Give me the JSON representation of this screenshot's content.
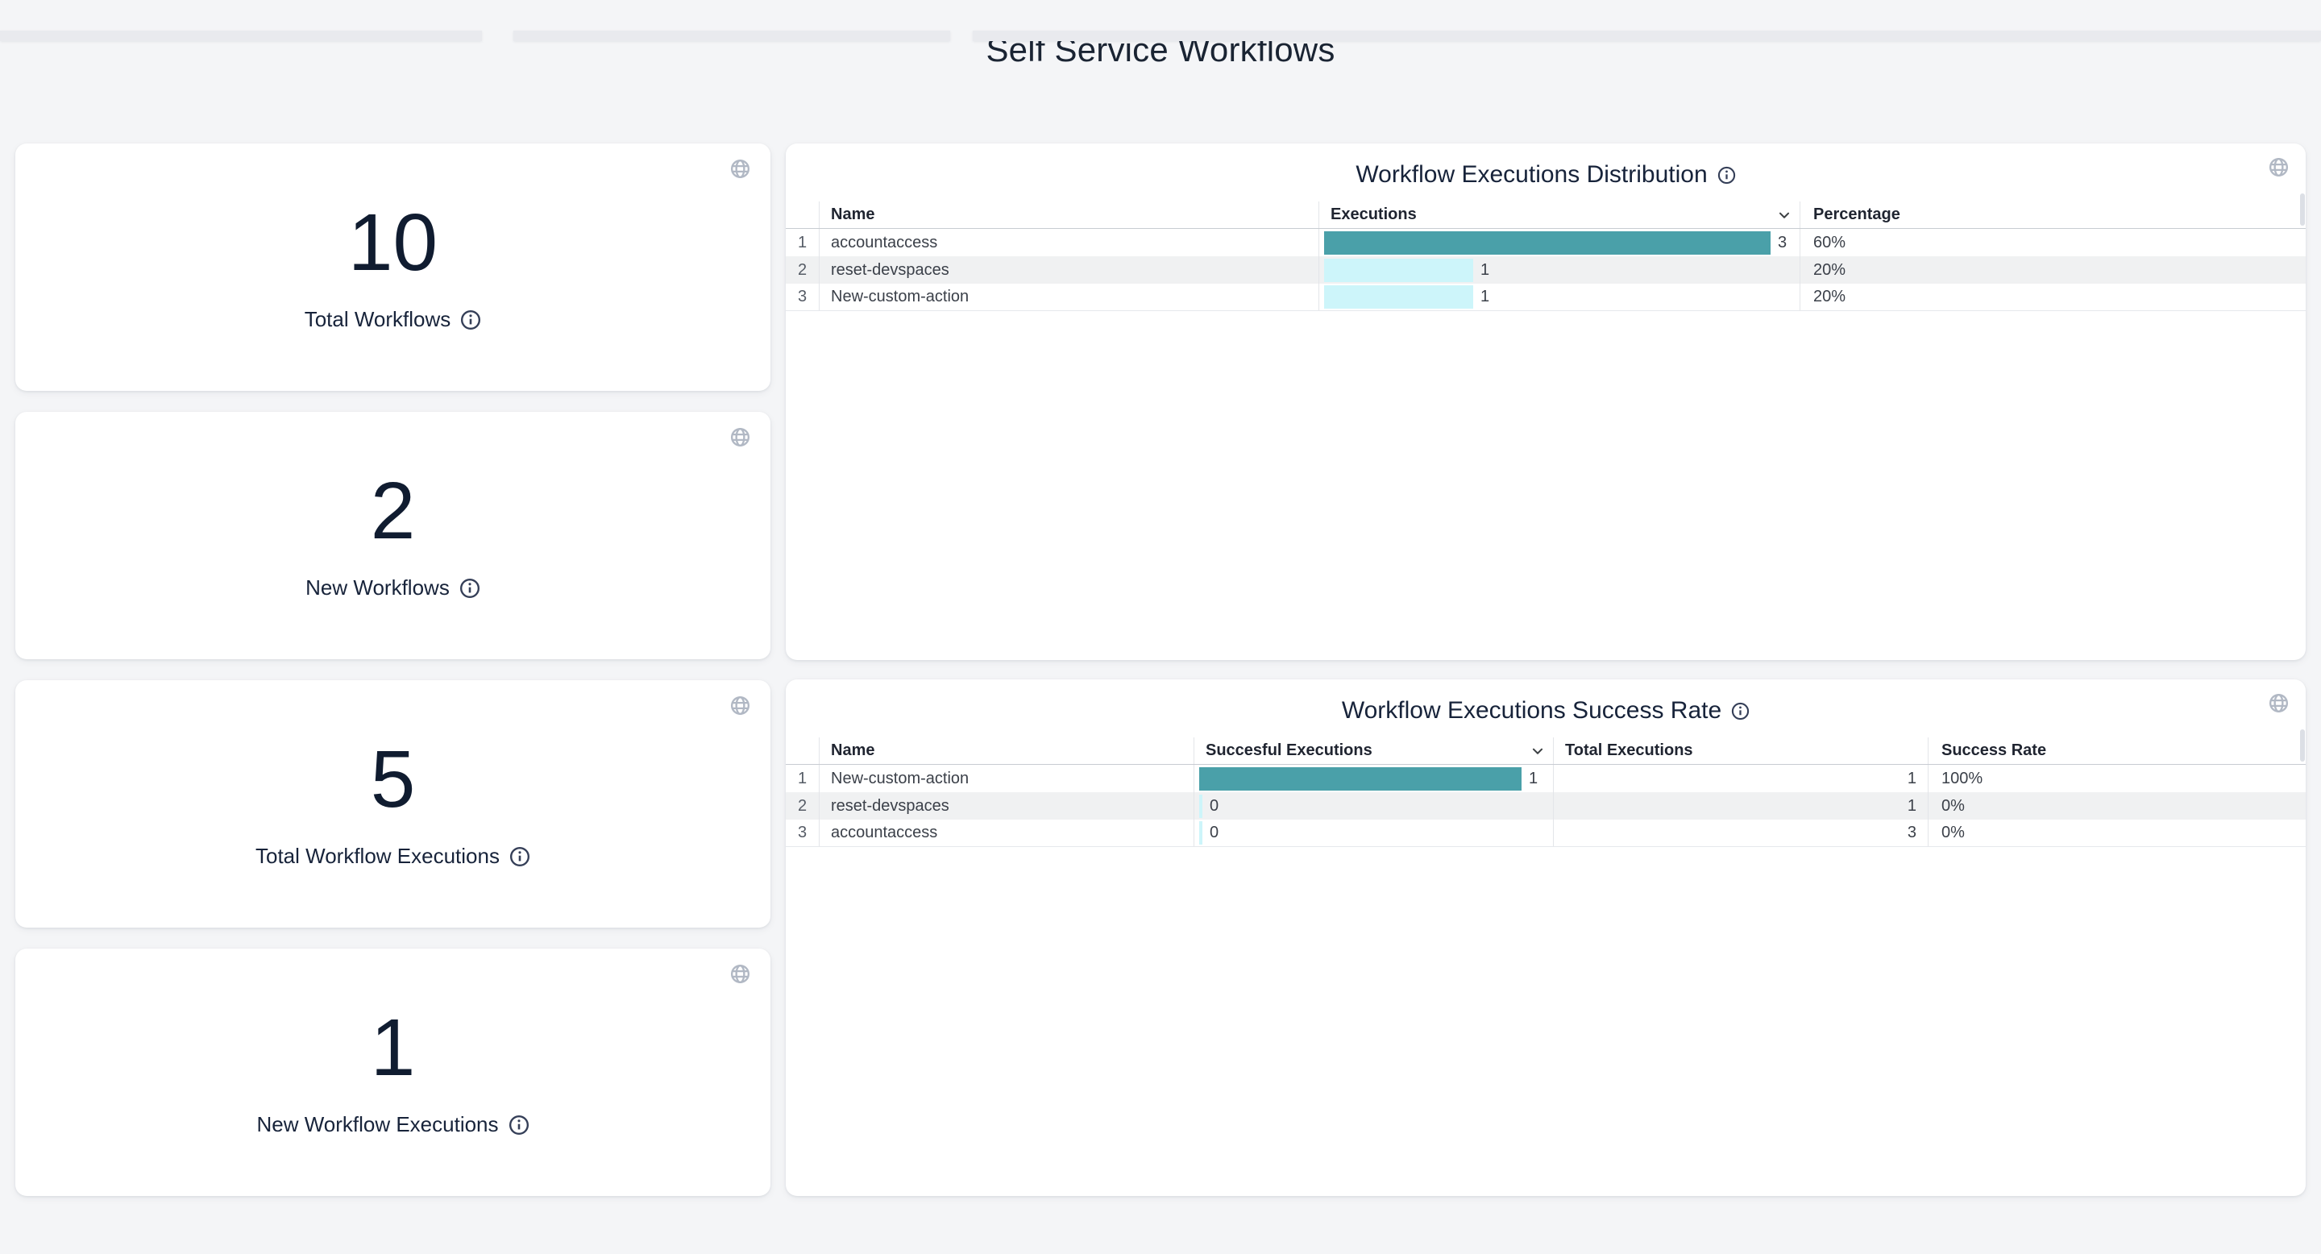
{
  "page": {
    "title": "Self Service Workflows",
    "background_color": "#f4f5f7",
    "accent_teal": "#4aa0a9",
    "accent_cyan": "#cdf5fa",
    "text_color": "#1a2433"
  },
  "stat_cards": [
    {
      "value": 10,
      "label": "Total Workflows"
    },
    {
      "value": 2,
      "label": "New Workflows"
    },
    {
      "value": 5,
      "label": "Total Workflow Executions"
    },
    {
      "value": 1,
      "label": "New Workflow Executions"
    }
  ],
  "distribution_table": {
    "title": "Workflow Executions Distribution",
    "headers": {
      "name": "Name",
      "executions": "Executions",
      "percentage": "Percentage"
    },
    "sorted_by": "Executions",
    "sort_direction": "descending",
    "max_executions": 3,
    "rows": [
      {
        "index": 1,
        "name": "accountaccess",
        "executions": 3,
        "percentage": "60%"
      },
      {
        "index": 2,
        "name": "reset-devspaces",
        "executions": 1,
        "percentage": "20%"
      },
      {
        "index": 3,
        "name": "New-custom-action",
        "executions": 1,
        "percentage": "20%"
      }
    ]
  },
  "success_table": {
    "title": "Workflow Executions Success Rate",
    "headers": {
      "name": "Name",
      "successful": "Succesful Executions",
      "total": "Total Executions",
      "rate": "Success Rate"
    },
    "sorted_by": "Succesful Executions",
    "sort_direction": "descending",
    "max_successful": 1,
    "rows": [
      {
        "index": 1,
        "name": "New-custom-action",
        "successful": 1,
        "total": 1,
        "rate": "100%"
      },
      {
        "index": 2,
        "name": "reset-devspaces",
        "successful": 0,
        "total": 1,
        "rate": "0%"
      },
      {
        "index": 3,
        "name": "accountaccess",
        "successful": 0,
        "total": 3,
        "rate": "0%"
      }
    ]
  },
  "icons": {
    "card_corner": "globe-icon",
    "title_hint": "info-icon",
    "sort": "chevron-down-icon"
  }
}
